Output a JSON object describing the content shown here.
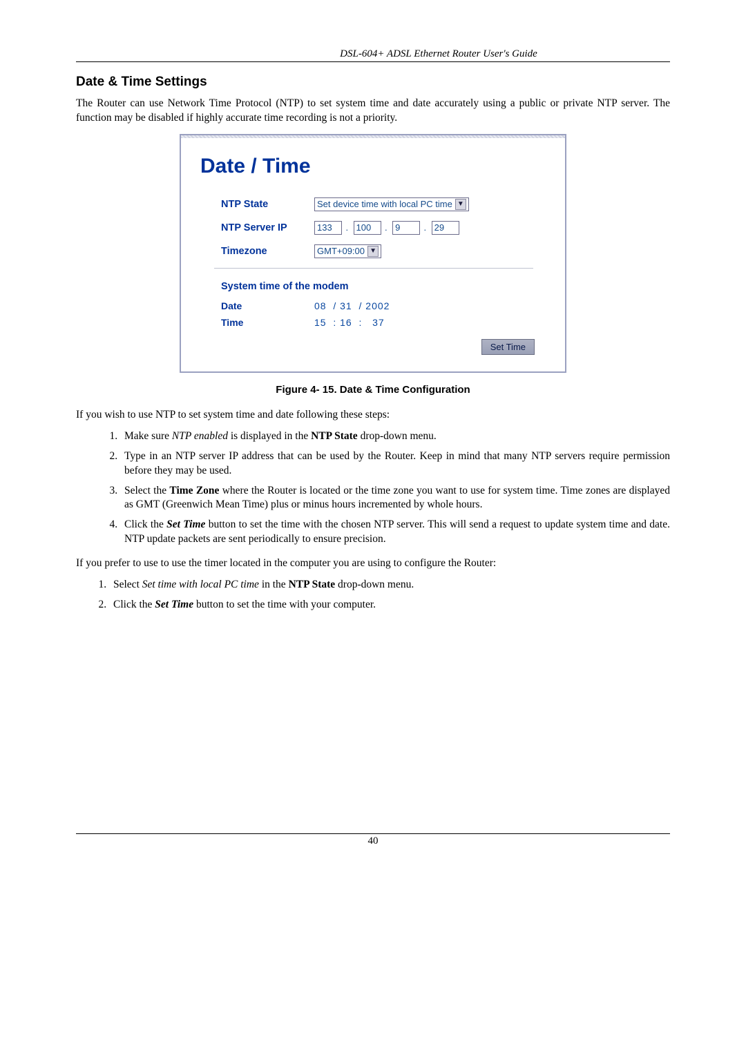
{
  "header": {
    "title": "DSL-604+ ADSL Ethernet Router User's Guide"
  },
  "section": {
    "heading": "Date & Time Settings"
  },
  "para1": "The Router can use Network Time Protocol (NTP) to set system time and date accurately using a public or private NTP server. The function may be disabled if highly accurate time recording is not a priority.",
  "panel": {
    "title": "Date / Time",
    "labels": {
      "ntpState": "NTP State",
      "ntpServerIP": "NTP Server IP",
      "timezone": "Timezone"
    },
    "ntpStateOption": "Set device time with local PC time",
    "ip": {
      "a": "133",
      "b": "100",
      "c": "9",
      "d": "29"
    },
    "timezoneOption": "GMT+09:00",
    "systemTitle": "System time of the modem",
    "dateLabel": "Date",
    "timeLabel": "Time",
    "date": {
      "d": "08",
      "m": "31",
      "y": "2002"
    },
    "time": {
      "h": "15",
      "mi": "16",
      "s": "37"
    },
    "button": "Set Time"
  },
  "caption": "Figure 4- 15. Date & Time Configuration",
  "para2": "If you wish to use NTP to set system time and date following these steps:",
  "listA": {
    "i1a": "Make sure ",
    "i1b": "NTP enabled",
    "i1c": " is displayed in the ",
    "i1d": "NTP State",
    "i1e": " drop-down menu.",
    "i2": "Type in an NTP server IP address that can be used by the Router. Keep in mind that many NTP servers require permission before they may be used.",
    "i3a": "Select the ",
    "i3b": "Time Zone",
    "i3c": " where the Router is located or the time zone you want to use for system time. Time zones are displayed as GMT (Greenwich Mean Time) plus or minus hours incremented by whole hours.",
    "i4a": "Click the ",
    "i4b": "Set Time",
    "i4c": " button to set the time with the chosen NTP server. This will send a request to update system time and date. NTP update packets are sent periodically to ensure precision."
  },
  "para3": "If you prefer to use to use the timer located in the computer you are using to configure the Router:",
  "listB": {
    "i1a": "Select ",
    "i1b": "Set time with local PC time",
    "i1c": " in the ",
    "i1d": "NTP State",
    "i1e": " drop-down menu.",
    "i2a": "Click the ",
    "i2b": "Set Time",
    "i2c": " button to set the time with your computer."
  },
  "footer": {
    "page": "40"
  }
}
